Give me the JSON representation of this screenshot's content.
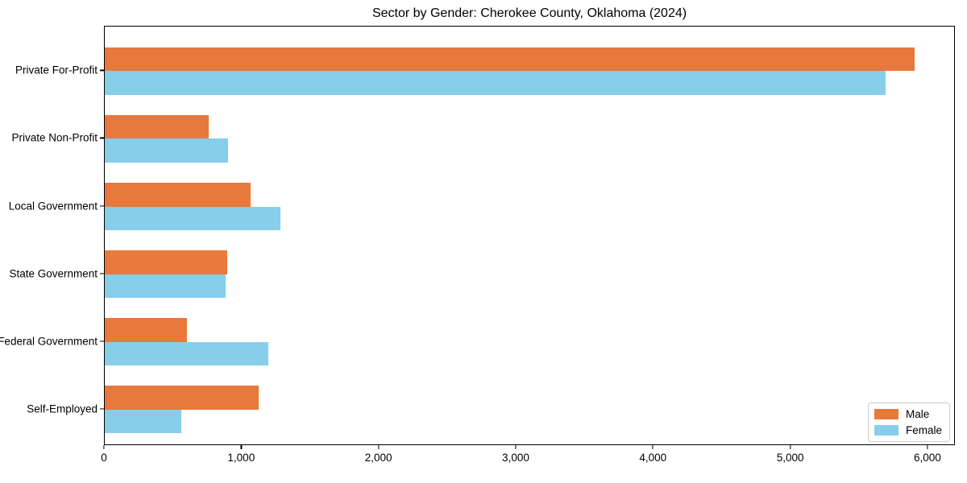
{
  "chart_data": {
    "type": "bar",
    "orientation": "horizontal",
    "title": "Sector by Gender: Cherokee County, Oklahoma (2024)",
    "categories": [
      "Private For-Profit",
      "Private Non-Profit",
      "Local Government",
      "State Government",
      "Federal Government",
      "Self-Employed"
    ],
    "series": [
      {
        "name": "Male",
        "color": "#E8793C",
        "values": [
          5900,
          760,
          1060,
          890,
          600,
          1120
        ]
      },
      {
        "name": "Female",
        "color": "#87CEEB",
        "values": [
          5690,
          900,
          1280,
          880,
          1190,
          560
        ]
      }
    ],
    "xlabel": "",
    "ylabel": "",
    "xlim": [
      0,
      6200
    ],
    "x_ticks": [
      0,
      1000,
      2000,
      3000,
      4000,
      5000,
      6000
    ],
    "x_tick_labels": [
      "0",
      "1,000",
      "2,000",
      "3,000",
      "4,000",
      "5,000",
      "6,000"
    ],
    "grid": false,
    "legend_position": "lower right",
    "background_color": "#ffffff",
    "frame_color": "#000000"
  }
}
